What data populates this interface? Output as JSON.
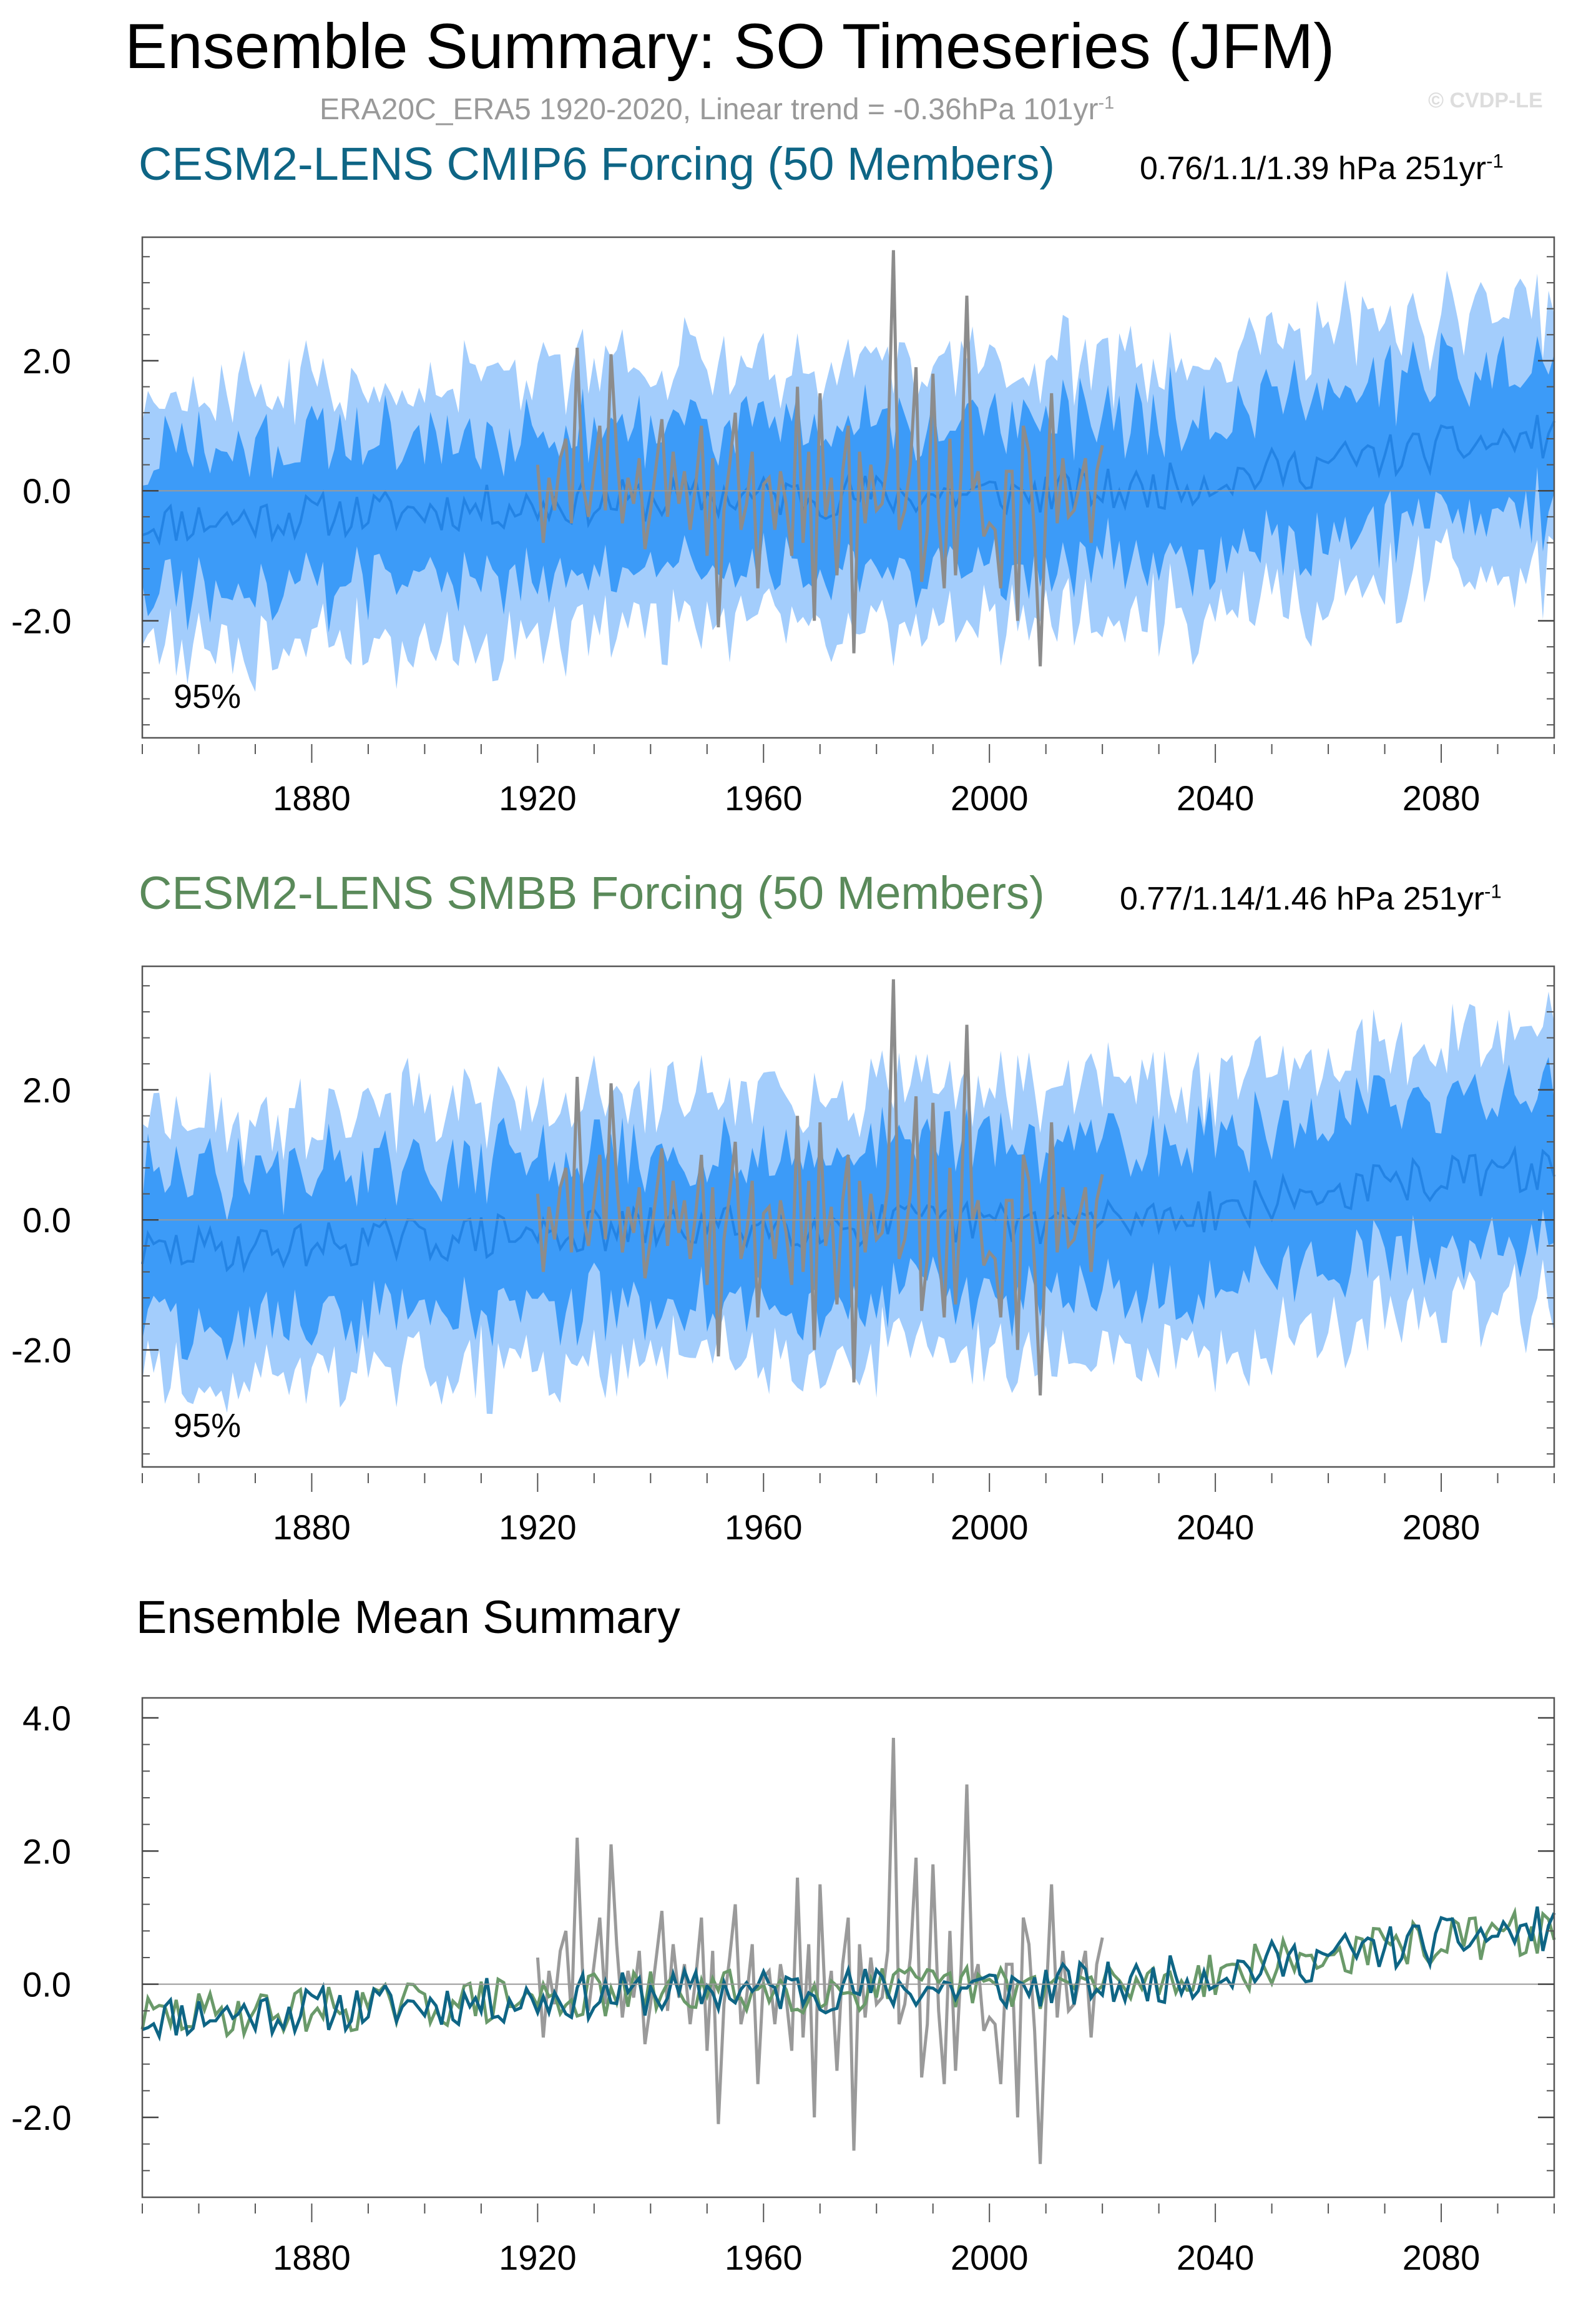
{
  "header": {
    "title": "Ensemble Summary: SO Timeseries (JFM)",
    "subtitle_text": "ERA20C_ERA5 1920-2020, Linear trend = -0.36hPa 101yr",
    "subtitle_sup": "-1",
    "watermark": "© CVDP-LE"
  },
  "colors": {
    "band95": "#a3cdfc",
    "band_inner": "#3c9bf8",
    "ens_mean_line": "#2383e4",
    "obs_line": "#8c8c8c",
    "cmip6_title": "#0e6585",
    "smbb_title": "#5a8a5a",
    "mean_cmip6": "#0e6585",
    "mean_smbb": "#6a9a6a",
    "mean_obs": "#9a9a9a"
  },
  "panels": [
    {
      "id": "cmip6",
      "title": "CESM2-LENS CMIP6 Forcing (50 Members)",
      "stats_text": "0.76/1.1/1.39 hPa 251yr",
      "stats_sup": "-1",
      "band_label": "95%",
      "seed": 11
    },
    {
      "id": "smbb",
      "title": "CESM2-LENS SMBB Forcing (50 Members)",
      "stats_text": "0.77/1.14/1.46 hPa 251yr",
      "stats_sup": "-1",
      "band_label": "95%",
      "seed": 29
    }
  ],
  "mean_summary": {
    "title": "Ensemble Mean Summary"
  },
  "chart_data": [
    {
      "type": "area",
      "panel": "CESM2-LENS CMIP6 Forcing (50 Members)",
      "x_range": [
        1850,
        2100
      ],
      "ylim": [
        -3.8,
        3.9
      ],
      "yticks": [
        -2.0,
        0.0,
        2.0
      ],
      "ytick_labels": [
        "-2.0",
        "0.0",
        "2.0"
      ],
      "xticks": [
        1880,
        1920,
        1960,
        2000,
        2040,
        2080
      ],
      "xtick_labels": [
        "1880",
        "1920",
        "1960",
        "2000",
        "2040",
        "2080"
      ],
      "ensemble_mean_trend": {
        "x": [
          1850,
          1900,
          1950,
          2000,
          2025,
          2050,
          2075,
          2100
        ],
        "y": [
          -0.5,
          -0.3,
          -0.1,
          -0.05,
          0.0,
          0.3,
          0.6,
          0.85
        ]
      },
      "band_95_halfwidth": 2.0,
      "band_inner_halfwidth": 1.1,
      "observed": {
        "name": "ERA20C_ERA5",
        "x": [
          1920,
          1921,
          1922,
          1923,
          1924,
          1925,
          1926,
          1927,
          1928,
          1929,
          1930,
          1931,
          1932,
          1933,
          1934,
          1935,
          1936,
          1937,
          1938,
          1939,
          1940,
          1941,
          1942,
          1943,
          1944,
          1945,
          1946,
          1947,
          1948,
          1949,
          1950,
          1951,
          1952,
          1953,
          1954,
          1955,
          1956,
          1957,
          1958,
          1959,
          1960,
          1961,
          1962,
          1963,
          1964,
          1965,
          1966,
          1967,
          1968,
          1969,
          1970,
          1971,
          1972,
          1973,
          1974,
          1975,
          1976,
          1977,
          1978,
          1979,
          1980,
          1981,
          1982,
          1983,
          1984,
          1985,
          1986,
          1987,
          1988,
          1989,
          1990,
          1991,
          1992,
          1993,
          1994,
          1995,
          1996,
          1997,
          1998,
          1999,
          2000,
          2001,
          2002,
          2003,
          2004,
          2005,
          2006,
          2007,
          2008,
          2009,
          2010,
          2011,
          2012,
          2013,
          2014,
          2015,
          2016,
          2017,
          2018,
          2019,
          2020
        ],
        "y": [
          0.4,
          -0.8,
          0.2,
          -0.3,
          0.5,
          0.8,
          -0.5,
          2.2,
          0.1,
          -0.4,
          0.3,
          1.0,
          -0.3,
          2.1,
          0.6,
          -0.5,
          0.2,
          -0.2,
          0.5,
          -0.9,
          -0.3,
          0.4,
          1.1,
          -0.4,
          0.6,
          -0.2,
          0.3,
          -0.6,
          0.1,
          1.0,
          -1.0,
          0.5,
          -2.1,
          -0.3,
          0.4,
          1.2,
          -0.6,
          -0.2,
          0.6,
          -1.5,
          0.1,
          0.2,
          -0.6,
          0.3,
          -0.2,
          -1.0,
          1.6,
          -0.8,
          0.6,
          -2.0,
          1.5,
          -0.4,
          0.2,
          -1.3,
          0.3,
          1.0,
          -2.5,
          0.6,
          -0.5,
          0.4,
          -0.3,
          -0.2,
          0.5,
          3.7,
          -0.6,
          -0.3,
          0.4,
          1.9,
          -1.4,
          -0.6,
          1.8,
          -0.4,
          -1.5,
          0.8,
          -1.3,
          0.3,
          3.0,
          0.0,
          0.3,
          -0.7,
          -0.5,
          -0.6,
          -1.5,
          0.3,
          0.3,
          -2.0,
          1.0,
          0.6,
          -0.7,
          -2.7,
          -0.3,
          1.5,
          -0.5,
          0.5,
          -0.4,
          -0.3,
          0.1,
          0.5,
          -0.8,
          0.3,
          0.7
        ]
      }
    },
    {
      "type": "area",
      "panel": "CESM2-LENS SMBB Forcing (50 Members)",
      "x_range": [
        1850,
        2100
      ],
      "ylim": [
        -3.8,
        3.9
      ],
      "yticks": [
        -2.0,
        0.0,
        2.0
      ],
      "ytick_labels": [
        "-2.0",
        "0.0",
        "2.0"
      ],
      "xticks": [
        1880,
        1920,
        1960,
        2000,
        2040,
        2080
      ],
      "xtick_labels": [
        "1880",
        "1920",
        "1960",
        "2000",
        "2040",
        "2080"
      ],
      "ensemble_mean_trend": {
        "x": [
          1850,
          1900,
          1950,
          2000,
          2025,
          2050,
          2075,
          2100
        ],
        "y": [
          -0.5,
          -0.3,
          -0.1,
          -0.05,
          0.0,
          0.3,
          0.6,
          0.8
        ]
      },
      "band_95_halfwidth": 2.05,
      "band_inner_halfwidth": 1.15,
      "observed": "same as CMIP6 panel"
    },
    {
      "type": "line",
      "panel": "Ensemble Mean Summary",
      "x_range": [
        1850,
        2100
      ],
      "ylim": [
        -3.2,
        4.3
      ],
      "yticks": [
        -2.0,
        0.0,
        2.0,
        4.0
      ],
      "ytick_labels": [
        "-2.0",
        "0.0",
        "2.0",
        "4.0"
      ],
      "xticks": [
        1880,
        1920,
        1960,
        2000,
        2040,
        2080
      ],
      "xtick_labels": [
        "1880",
        "1920",
        "1960",
        "2000",
        "2040",
        "2080"
      ],
      "series": [
        "CMIP6 ensemble mean",
        "SMBB ensemble mean",
        "ERA20C_ERA5 observed"
      ]
    }
  ]
}
